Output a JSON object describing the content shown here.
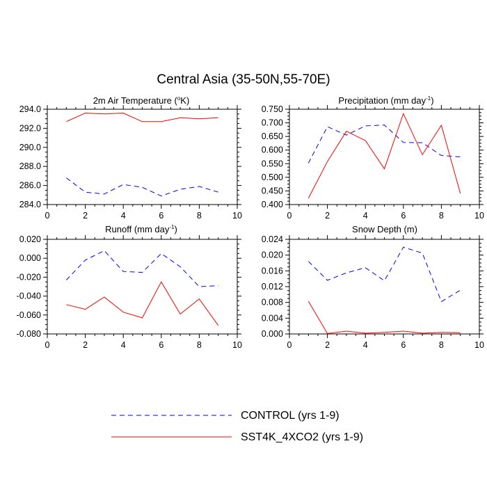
{
  "figure_title": "Central Asia (35-50N,55-70E)",
  "legend": {
    "entries": [
      {
        "label": "CONTROL (yrs 1-9)",
        "color": "#0000ff",
        "style": "dashed"
      },
      {
        "label": "SST4K_4XCO2 (yrs 1-9)",
        "color": "#ff0000",
        "style": "solid"
      }
    ]
  },
  "chart_data": [
    {
      "type": "line",
      "title_main": "2m Air Temperature (",
      "title_sup": "o",
      "title_tail": "K)",
      "x": [
        1,
        2,
        3,
        4,
        5,
        6,
        7,
        8,
        9
      ],
      "xlim": [
        0,
        10
      ],
      "xticks": [
        0,
        2,
        4,
        6,
        8,
        10
      ],
      "ylim": [
        284.0,
        294.0
      ],
      "yticks": [
        284.0,
        286.0,
        288.0,
        290.0,
        292.0,
        294.0
      ],
      "ytick_labels": [
        "284.0",
        "286.0",
        "288.0",
        "290.0",
        "292.0",
        "294.0"
      ],
      "series": [
        {
          "name": "CONTROL (yrs 1-9)",
          "values": [
            286.8,
            285.3,
            285.1,
            286.1,
            285.8,
            284.9,
            285.6,
            285.9,
            285.3
          ]
        },
        {
          "name": "SST4K_4XCO2 (yrs 1-9)",
          "values": [
            292.7,
            293.6,
            293.5,
            293.6,
            292.7,
            292.7,
            293.1,
            293.0,
            293.1
          ]
        }
      ]
    },
    {
      "type": "line",
      "title_main": "Precipitation (mm day",
      "title_sup": "-1",
      "title_tail": ")",
      "x": [
        1,
        2,
        3,
        4,
        5,
        6,
        7,
        8,
        9
      ],
      "xlim": [
        0,
        10
      ],
      "xticks": [
        0,
        2,
        4,
        6,
        8,
        10
      ],
      "ylim": [
        0.4,
        0.75
      ],
      "yticks": [
        0.4,
        0.45,
        0.5,
        0.55,
        0.6,
        0.65,
        0.7,
        0.75
      ],
      "ytick_labels": [
        "0.400",
        "0.450",
        "0.500",
        "0.550",
        "0.600",
        "0.650",
        "0.700",
        "0.750"
      ],
      "series": [
        {
          "name": "CONTROL (yrs 1-9)",
          "values": [
            0.552,
            0.686,
            0.655,
            0.689,
            0.692,
            0.628,
            0.627,
            0.58,
            0.575
          ]
        },
        {
          "name": "SST4K_4XCO2 (yrs 1-9)",
          "values": [
            0.423,
            0.558,
            0.669,
            0.635,
            0.531,
            0.734,
            0.583,
            0.691,
            0.441
          ]
        }
      ]
    },
    {
      "type": "line",
      "title_main": "Runoff (mm day",
      "title_sup": "-1",
      "title_tail": ")",
      "x": [
        1,
        2,
        3,
        4,
        5,
        6,
        7,
        8,
        9
      ],
      "xlim": [
        0,
        10
      ],
      "xticks": [
        0,
        2,
        4,
        6,
        8,
        10
      ],
      "ylim": [
        -0.08,
        0.02
      ],
      "yticks": [
        -0.08,
        -0.06,
        -0.04,
        -0.02,
        0.0,
        0.02
      ],
      "ytick_labels": [
        "-0.080",
        "-0.060",
        "-0.040",
        "-0.020",
        "0.000",
        "0.020"
      ],
      "series": [
        {
          "name": "CONTROL (yrs 1-9)",
          "values": [
            -0.023,
            -0.002,
            0.008,
            -0.014,
            -0.015,
            0.005,
            -0.009,
            -0.03,
            -0.029
          ]
        },
        {
          "name": "SST4K_4XCO2 (yrs 1-9)",
          "values": [
            -0.049,
            -0.054,
            -0.041,
            -0.057,
            -0.063,
            -0.025,
            -0.059,
            -0.043,
            -0.071
          ]
        }
      ]
    },
    {
      "type": "line",
      "title_main": "Snow Depth (m)",
      "title_sup": "",
      "title_tail": "",
      "x": [
        1,
        2,
        3,
        4,
        5,
        6,
        7,
        8,
        9
      ],
      "xlim": [
        0,
        10
      ],
      "xticks": [
        0,
        2,
        4,
        6,
        8,
        10
      ],
      "ylim": [
        0.0,
        0.024
      ],
      "yticks": [
        0.0,
        0.004,
        0.008,
        0.012,
        0.016,
        0.02,
        0.024
      ],
      "ytick_labels": [
        "0.000",
        "0.004",
        "0.008",
        "0.012",
        "0.016",
        "0.020",
        "0.024"
      ],
      "series": [
        {
          "name": "CONTROL (yrs 1-9)",
          "values": [
            0.0184,
            0.0136,
            0.0155,
            0.0168,
            0.0135,
            0.022,
            0.0205,
            0.0082,
            0.0111
          ]
        },
        {
          "name": "SST4K_4XCO2 (yrs 1-9)",
          "values": [
            0.0083,
            0.0001,
            0.0007,
            0.0002,
            0.0004,
            0.0007,
            0.0002,
            0.0004,
            0.0003
          ]
        }
      ]
    }
  ]
}
